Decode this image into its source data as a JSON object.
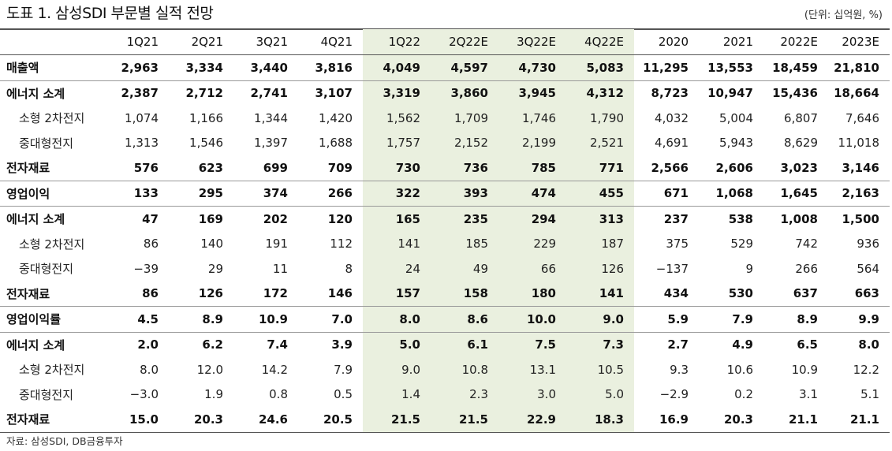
{
  "title": "도표 1. 삼성SDI 부문별 실적 전망",
  "unit": "(단위: 십억원, %)",
  "source": "자료: 삼성SDI, DB금융투자",
  "columns": [
    "1Q21",
    "2Q21",
    "3Q21",
    "4Q21",
    "1Q22",
    "2Q22E",
    "3Q22E",
    "4Q22E",
    "2020",
    "2021",
    "2022E",
    "2023E"
  ],
  "rows": [
    {
      "label": "매출액",
      "bold": true,
      "sub": false,
      "sep": false,
      "values": [
        "2,963",
        "3,334",
        "3,440",
        "3,816",
        "4,049",
        "4,597",
        "4,730",
        "5,083",
        "11,295",
        "13,553",
        "18,459",
        "21,810"
      ]
    },
    {
      "label": "에너지 소계",
      "bold": true,
      "sub": false,
      "sep": true,
      "values": [
        "2,387",
        "2,712",
        "2,741",
        "3,107",
        "3,319",
        "3,860",
        "3,945",
        "4,312",
        "8,723",
        "10,947",
        "15,436",
        "18,664"
      ]
    },
    {
      "label": "소형 2차전지",
      "bold": false,
      "sub": true,
      "sep": false,
      "values": [
        "1,074",
        "1,166",
        "1,344",
        "1,420",
        "1,562",
        "1,709",
        "1,746",
        "1,790",
        "4,032",
        "5,004",
        "6,807",
        "7,646"
      ]
    },
    {
      "label": "중대형전지",
      "bold": false,
      "sub": true,
      "sep": false,
      "values": [
        "1,313",
        "1,546",
        "1,397",
        "1,688",
        "1,757",
        "2,152",
        "2,199",
        "2,521",
        "4,691",
        "5,943",
        "8,629",
        "11,018"
      ]
    },
    {
      "label": "전자재료",
      "bold": true,
      "sub": false,
      "sep": false,
      "values": [
        "576",
        "623",
        "699",
        "709",
        "730",
        "736",
        "785",
        "771",
        "2,566",
        "2,606",
        "3,023",
        "3,146"
      ]
    },
    {
      "label": "영업이익",
      "bold": true,
      "sub": false,
      "sep": true,
      "values": [
        "133",
        "295",
        "374",
        "266",
        "322",
        "393",
        "474",
        "455",
        "671",
        "1,068",
        "1,645",
        "2,163"
      ]
    },
    {
      "label": "에너지 소계",
      "bold": true,
      "sub": false,
      "sep": true,
      "values": [
        "47",
        "169",
        "202",
        "120",
        "165",
        "235",
        "294",
        "313",
        "237",
        "538",
        "1,008",
        "1,500"
      ]
    },
    {
      "label": "소형 2차전지",
      "bold": false,
      "sub": true,
      "sep": false,
      "values": [
        "86",
        "140",
        "191",
        "112",
        "141",
        "185",
        "229",
        "187",
        "375",
        "529",
        "742",
        "936"
      ]
    },
    {
      "label": "중대형전지",
      "bold": false,
      "sub": true,
      "sep": false,
      "values": [
        "−39",
        "29",
        "11",
        "8",
        "24",
        "49",
        "66",
        "126",
        "−137",
        "9",
        "266",
        "564"
      ]
    },
    {
      "label": "전자재료",
      "bold": true,
      "sub": false,
      "sep": false,
      "values": [
        "86",
        "126",
        "172",
        "146",
        "157",
        "158",
        "180",
        "141",
        "434",
        "530",
        "637",
        "663"
      ]
    },
    {
      "label": "영업이익률",
      "bold": true,
      "sub": false,
      "sep": true,
      "values": [
        "4.5",
        "8.9",
        "10.9",
        "7.0",
        "8.0",
        "8.6",
        "10.0",
        "9.0",
        "5.9",
        "7.9",
        "8.9",
        "9.9"
      ]
    },
    {
      "label": "에너지 소계",
      "bold": true,
      "sub": false,
      "sep": true,
      "values": [
        "2.0",
        "6.2",
        "7.4",
        "3.9",
        "5.0",
        "6.1",
        "7.5",
        "7.3",
        "2.7",
        "4.9",
        "6.5",
        "8.0"
      ]
    },
    {
      "label": "소형 2차전지",
      "bold": false,
      "sub": true,
      "sep": false,
      "values": [
        "8.0",
        "12.0",
        "14.2",
        "7.9",
        "9.0",
        "10.8",
        "13.1",
        "10.5",
        "9.3",
        "10.6",
        "10.9",
        "12.2"
      ]
    },
    {
      "label": "중대형전지",
      "bold": false,
      "sub": true,
      "sep": false,
      "values": [
        "−3.0",
        "1.9",
        "0.8",
        "0.5",
        "1.4",
        "2.3",
        "3.0",
        "5.0",
        "−2.9",
        "0.2",
        "3.1",
        "5.1"
      ]
    },
    {
      "label": "전자재료",
      "bold": true,
      "sub": false,
      "sep": false,
      "values": [
        "15.0",
        "20.3",
        "24.6",
        "20.5",
        "21.5",
        "21.5",
        "22.9",
        "18.3",
        "16.9",
        "20.3",
        "21.1",
        "21.1"
      ]
    }
  ],
  "highlight_cols": [
    4,
    5,
    6,
    7
  ],
  "colors": {
    "highlight": "#eaf0df"
  }
}
